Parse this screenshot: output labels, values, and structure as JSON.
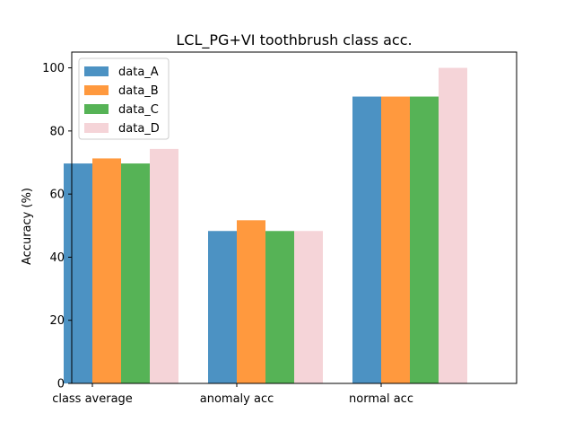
{
  "chart_data": {
    "type": "bar",
    "title": "LCL_PG+VI toothbrush class acc.",
    "xlabel": "",
    "ylabel": "Accuracy (%)",
    "categories": [
      "class average",
      "anomaly acc",
      "normal acc"
    ],
    "ylim": [
      0,
      105
    ],
    "yticks": [
      0,
      20,
      40,
      60,
      80,
      100
    ],
    "grid": false,
    "legend_position": "top-left",
    "series": [
      {
        "name": "data_A",
        "color": "#1f77b4",
        "values": [
          69.7,
          48.3,
          90.9
        ]
      },
      {
        "name": "data_B",
        "color": "#ff7f0e",
        "values": [
          71.3,
          51.7,
          90.9
        ]
      },
      {
        "name": "data_C",
        "color": "#2ca02c",
        "values": [
          69.7,
          48.3,
          90.9
        ]
      },
      {
        "name": "data_D",
        "color": "#e8a0a8",
        "values": [
          74.3,
          48.3,
          100.0
        ]
      }
    ]
  }
}
